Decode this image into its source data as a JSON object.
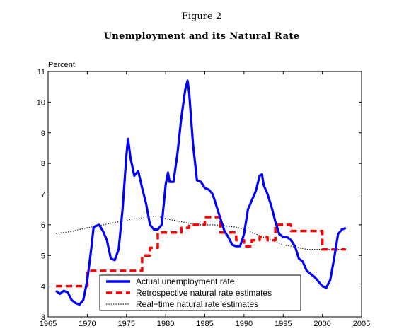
{
  "figure_label": "Figure 2",
  "chart_data": {
    "type": "line",
    "title": "Unemployment and its Natural Rate",
    "ylabel": "Percent",
    "xlabel": "",
    "xlim": [
      1965,
      2005
    ],
    "ylim": [
      3,
      11
    ],
    "x_ticks": [
      1965,
      1970,
      1975,
      1980,
      1985,
      1990,
      1995,
      2000,
      2005
    ],
    "y_ticks": [
      3,
      4,
      5,
      6,
      7,
      8,
      9,
      10,
      11
    ],
    "grid": false,
    "legend_position": "bottom-center",
    "series": [
      {
        "name": "Actual unemployment rate",
        "color": "#0000ff",
        "style": "solid",
        "x": [
          1966.0,
          1966.5,
          1967.0,
          1967.5,
          1968.0,
          1968.5,
          1969.0,
          1969.5,
          1970.0,
          1970.5,
          1970.8,
          1971.0,
          1971.5,
          1972.0,
          1972.5,
          1973.0,
          1973.5,
          1974.0,
          1974.5,
          1975.0,
          1975.2,
          1975.5,
          1976.0,
          1976.5,
          1977.0,
          1977.5,
          1978.0,
          1978.5,
          1979.0,
          1979.5,
          1980.0,
          1980.3,
          1980.5,
          1981.0,
          1981.5,
          1982.0,
          1982.5,
          1982.8,
          1983.0,
          1983.5,
          1984.0,
          1984.5,
          1985.0,
          1985.5,
          1986.0,
          1986.5,
          1987.0,
          1987.5,
          1988.0,
          1988.5,
          1989.0,
          1989.5,
          1990.0,
          1990.5,
          1991.0,
          1991.5,
          1992.0,
          1992.3,
          1992.5,
          1993.0,
          1993.5,
          1994.0,
          1994.5,
          1995.0,
          1995.5,
          1996.0,
          1996.5,
          1997.0,
          1997.5,
          1998.0,
          1998.5,
          1999.0,
          1999.5,
          2000.0,
          2000.5,
          2001.0,
          2001.5,
          2002.0,
          2002.5,
          2003.0
        ],
        "y": [
          3.85,
          3.75,
          3.85,
          3.8,
          3.55,
          3.45,
          3.4,
          3.55,
          4.2,
          5.2,
          5.9,
          5.95,
          6.0,
          5.8,
          5.5,
          4.9,
          4.85,
          5.2,
          6.5,
          8.3,
          8.8,
          8.2,
          7.6,
          7.75,
          7.2,
          6.7,
          6.0,
          5.85,
          5.85,
          6.0,
          7.3,
          7.7,
          7.4,
          7.4,
          8.3,
          9.5,
          10.4,
          10.7,
          10.3,
          8.6,
          7.45,
          7.4,
          7.2,
          7.15,
          7.0,
          6.6,
          6.2,
          5.8,
          5.6,
          5.35,
          5.3,
          5.3,
          5.7,
          6.5,
          6.8,
          7.1,
          7.6,
          7.65,
          7.3,
          7.0,
          6.6,
          6.1,
          5.7,
          5.6,
          5.6,
          5.5,
          5.3,
          4.9,
          4.8,
          4.5,
          4.4,
          4.3,
          4.15,
          4.0,
          3.95,
          4.2,
          4.9,
          5.7,
          5.85,
          5.9
        ]
      },
      {
        "name": "Retrospective natural rate estimates",
        "color": "#ff0000",
        "style": "dashed",
        "x": [
          1966.0,
          1970.0,
          1970.0,
          1977.0,
          1977.0,
          1978.0,
          1978.0,
          1979.0,
          1979.0,
          1982.0,
          1982.0,
          1983.0,
          1983.0,
          1985.0,
          1985.0,
          1987.0,
          1987.0,
          1989.0,
          1989.0,
          1990.0,
          1990.0,
          1991.0,
          1991.0,
          1992.0,
          1992.0,
          1993.0,
          1993.0,
          1994.0,
          1994.0,
          1996.0,
          1996.0,
          2000.0,
          2000.0,
          2003.0
        ],
        "y": [
          4.0,
          4.0,
          4.5,
          4.5,
          5.0,
          5.0,
          5.25,
          5.25,
          5.75,
          5.75,
          5.9,
          5.9,
          6.0,
          6.0,
          6.25,
          6.25,
          5.75,
          5.75,
          5.5,
          5.5,
          5.3,
          5.3,
          5.5,
          5.5,
          5.6,
          5.6,
          5.5,
          5.5,
          6.0,
          6.0,
          5.8,
          5.8,
          5.2,
          5.2
        ]
      },
      {
        "name": "Real−time natural rate estimates",
        "color": "#000000",
        "style": "dotted",
        "x": [
          1966.0,
          1967.0,
          1968.0,
          1969.0,
          1970.0,
          1971.0,
          1972.0,
          1973.0,
          1974.0,
          1975.0,
          1976.0,
          1977.0,
          1978.0,
          1979.0,
          1980.0,
          1981.0,
          1982.0,
          1983.0,
          1984.0,
          1985.0,
          1986.0,
          1987.0,
          1988.0,
          1989.0,
          1990.0,
          1991.0,
          1992.0,
          1993.0,
          1994.0,
          1995.0,
          1996.0,
          1997.0,
          1998.0,
          1999.0,
          2000.0,
          2001.0,
          2002.0,
          2003.0
        ],
        "y": [
          5.72,
          5.75,
          5.78,
          5.85,
          5.9,
          5.95,
          6.0,
          6.05,
          6.1,
          6.15,
          6.2,
          6.23,
          6.27,
          6.28,
          6.2,
          6.15,
          6.1,
          6.05,
          6.0,
          6.0,
          6.0,
          5.98,
          5.95,
          5.92,
          5.85,
          5.75,
          5.65,
          5.55,
          5.45,
          5.35,
          5.3,
          5.25,
          5.2,
          5.2,
          5.2,
          5.2,
          5.2,
          5.2
        ]
      }
    ]
  }
}
